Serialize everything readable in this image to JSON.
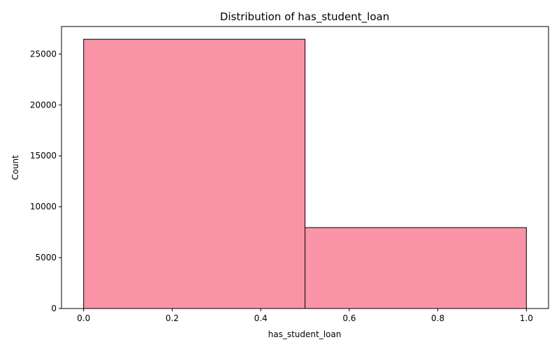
{
  "chart_data": {
    "type": "histogram",
    "title": "Distribution of has_student_loan",
    "xlabel": "has_student_loan",
    "ylabel": "Count",
    "xlim": [
      -0.05,
      1.05
    ],
    "ylim": [
      0,
      27700
    ],
    "bins": [
      {
        "x0": 0.0,
        "x1": 0.5,
        "count": 26450
      },
      {
        "x0": 0.5,
        "x1": 1.0,
        "count": 7950
      }
    ],
    "xticks": [
      {
        "value": 0.0,
        "label": "0.0"
      },
      {
        "value": 0.2,
        "label": "0.2"
      },
      {
        "value": 0.4,
        "label": "0.4"
      },
      {
        "value": 0.6,
        "label": "0.6"
      },
      {
        "value": 0.8,
        "label": "0.8"
      },
      {
        "value": 1.0,
        "label": "1.0"
      }
    ],
    "yticks": [
      {
        "value": 0,
        "label": "0"
      },
      {
        "value": 5000,
        "label": "5000"
      },
      {
        "value": 10000,
        "label": "10000"
      },
      {
        "value": 15000,
        "label": "15000"
      },
      {
        "value": 20000,
        "label": "20000"
      },
      {
        "value": 25000,
        "label": "25000"
      }
    ],
    "bar_color": "#f993a6",
    "edge_color": "#000000",
    "grid": false
  }
}
